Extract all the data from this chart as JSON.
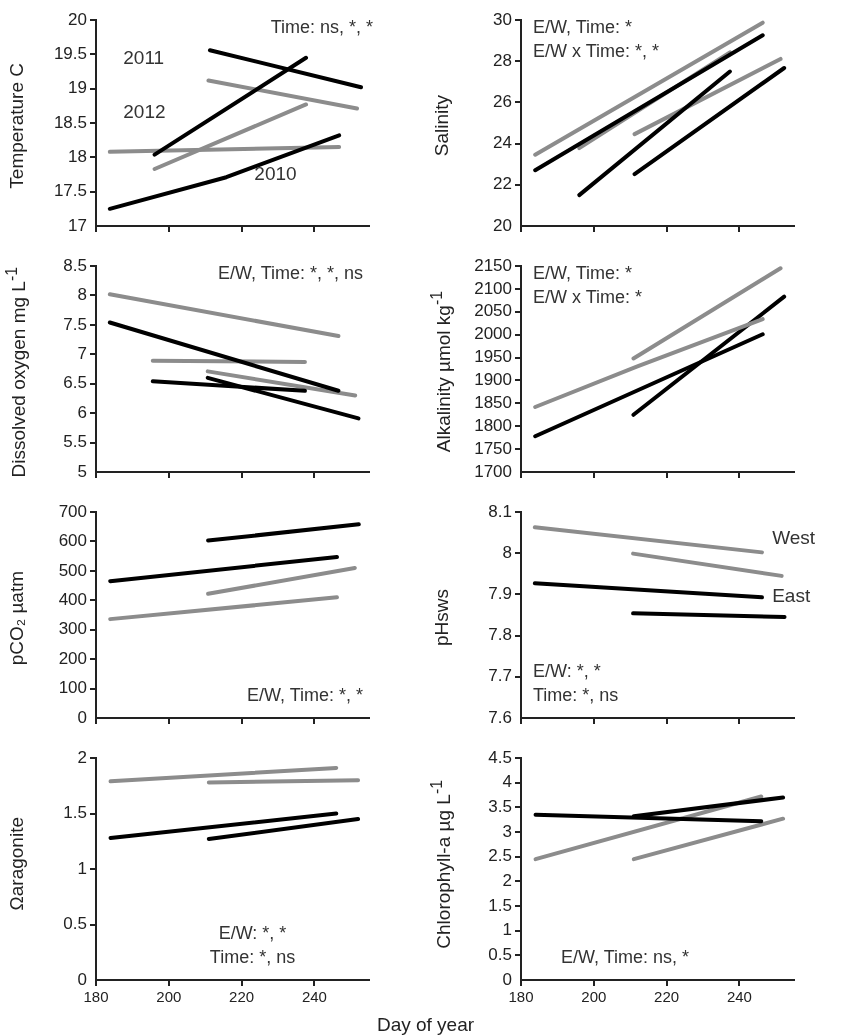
{
  "chart_data": [
    {
      "type": "line",
      "ylabel": "Temperature C",
      "xlim": [
        180,
        255
      ],
      "xticks": [
        180,
        200,
        220,
        240
      ],
      "ylim": [
        17,
        20
      ],
      "yticks": [
        17,
        17.5,
        18,
        18.5,
        19,
        19.5,
        20
      ],
      "tick_labels": "y",
      "grid": false,
      "legend": false,
      "marker": "none",
      "annotations": [
        "Time: ns, *, *",
        "2011",
        "2012",
        "2010"
      ],
      "series": [
        {
          "color": "#000000",
          "x": [
            211.3,
            252.8
          ],
          "values": [
            19.56,
            19.02
          ]
        },
        {
          "color": "#000000",
          "x": [
            196.1,
            237.7
          ],
          "values": [
            18.04,
            19.45
          ]
        },
        {
          "color": "#000000",
          "x": [
            183.8,
            215.8,
            246.8
          ],
          "values": [
            17.25,
            17.71,
            18.32
          ]
        },
        {
          "color": "#8c8c8c",
          "x": [
            210.9,
            251.7
          ],
          "values": [
            19.12,
            18.71
          ]
        },
        {
          "color": "#8c8c8c",
          "x": [
            196.1,
            237.7
          ],
          "values": [
            17.83,
            18.77
          ]
        },
        {
          "color": "#8c8c8c",
          "x": [
            183.8,
            246.8
          ],
          "values": [
            18.08,
            18.15
          ]
        }
      ]
    },
    {
      "type": "line",
      "ylabel": "Salinity",
      "xlim": [
        180,
        255
      ],
      "xticks": [
        180,
        200,
        220,
        240
      ],
      "ylim": [
        20,
        30
      ],
      "yticks": [
        20,
        22,
        24,
        26,
        28,
        30
      ],
      "tick_labels": "y",
      "grid": false,
      "legend": false,
      "marker": "none",
      "annotations": [
        "E/W, Time: *",
        "E/W x Time: *, *"
      ],
      "series": [
        {
          "color": "#8c8c8c",
          "x": [
            183.9,
            246.4
          ],
          "values": [
            23.46,
            29.87
          ]
        },
        {
          "color": "#000000",
          "x": [
            183.9,
            246.4
          ],
          "values": [
            22.71,
            29.26
          ]
        },
        {
          "color": "#8c8c8c",
          "x": [
            196,
            237.4
          ],
          "values": [
            23.78,
            28.43
          ]
        },
        {
          "color": "#000000",
          "x": [
            196,
            237.4
          ],
          "values": [
            21.5,
            27.5
          ]
        },
        {
          "color": "#8c8c8c",
          "x": [
            211.2,
            251.3
          ],
          "values": [
            24.46,
            28.11
          ]
        },
        {
          "color": "#000000",
          "x": [
            211.2,
            252.3
          ],
          "values": [
            22.52,
            27.67
          ]
        }
      ]
    },
    {
      "type": "line",
      "ylabel": "Dissolved oxygen mg L$^{-1}$",
      "xlim": [
        180,
        255
      ],
      "xticks": [
        180,
        200,
        220,
        240
      ],
      "ylim": [
        5,
        8.5
      ],
      "yticks": [
        5,
        5.5,
        6,
        6.5,
        7,
        7.5,
        8,
        8.5
      ],
      "tick_labels": "y",
      "grid": false,
      "legend": false,
      "marker": "none",
      "annotations": [
        "E/W, Time: *, *, ns"
      ],
      "series": [
        {
          "color": "#8c8c8c",
          "x": [
            183.8,
            246.6
          ],
          "values": [
            8.02,
            7.31
          ]
        },
        {
          "color": "#000000",
          "x": [
            183.8,
            246.6
          ],
          "values": [
            7.54,
            6.38
          ]
        },
        {
          "color": "#8c8c8c",
          "x": [
            195.6,
            237.4
          ],
          "values": [
            6.89,
            6.87
          ]
        },
        {
          "color": "#000000",
          "x": [
            195.6,
            237.4
          ],
          "values": [
            6.54,
            6.38
          ]
        },
        {
          "color": "#8c8c8c",
          "x": [
            210.7,
            251.2
          ],
          "values": [
            6.71,
            6.3
          ]
        },
        {
          "color": "#000000",
          "x": [
            210.7,
            252.1
          ],
          "values": [
            6.6,
            5.91
          ]
        }
      ]
    },
    {
      "type": "line",
      "ylabel": "Alkalinity µmol kg$^{-1}$",
      "xlim": [
        180,
        255
      ],
      "xticks": [
        180,
        200,
        220,
        240
      ],
      "ylim": [
        1700,
        2150
      ],
      "yticks": [
        1700,
        1750,
        1800,
        1850,
        1900,
        1950,
        2000,
        2050,
        2100,
        2150
      ],
      "tick_labels": "y",
      "grid": false,
      "legend": false,
      "marker": "none",
      "annotations": [
        "E/W, Time: *",
        "E/W x Time: *"
      ],
      "series": [
        {
          "color": "#8c8c8c",
          "x": [
            183.9,
            211.8,
            246.4
          ],
          "values": [
            1842,
            1930,
            2034
          ]
        },
        {
          "color": "#000000",
          "x": [
            183.9,
            246.4
          ],
          "values": [
            1778,
            2001
          ]
        },
        {
          "color": "#8c8c8c",
          "x": [
            210.9,
            251.3
          ],
          "values": [
            1948,
            2145
          ]
        },
        {
          "color": "#000000",
          "x": [
            210.9,
            252.3
          ],
          "values": [
            1825,
            2083
          ]
        }
      ]
    },
    {
      "type": "line",
      "ylabel": "pCO₂ µatm",
      "xlim": [
        180,
        255
      ],
      "xticks": [
        180,
        200,
        220,
        240
      ],
      "ylim": [
        0,
        700
      ],
      "yticks": [
        0,
        100,
        200,
        300,
        400,
        500,
        600,
        700
      ],
      "tick_labels": "y",
      "grid": false,
      "legend": false,
      "marker": "none",
      "annotations": [
        "E/W, Time: *, *"
      ],
      "series": [
        {
          "color": "#000000",
          "x": [
            210.8,
            252.2
          ],
          "values": [
            603,
            658
          ]
        },
        {
          "color": "#000000",
          "x": [
            183.9,
            246.2
          ],
          "values": [
            465,
            547
          ]
        },
        {
          "color": "#8c8c8c",
          "x": [
            210.8,
            251.1
          ],
          "values": [
            422,
            510
          ]
        },
        {
          "color": "#8c8c8c",
          "x": [
            183.9,
            246.2
          ],
          "values": [
            336,
            410
          ]
        }
      ]
    },
    {
      "type": "line",
      "ylabel": "pHsws",
      "xlim": [
        180,
        255
      ],
      "xticks": [
        180,
        200,
        220,
        240
      ],
      "ylim": [
        7.6,
        8.1
      ],
      "yticks": [
        7.6,
        7.7,
        7.8,
        7.9,
        8,
        8.1
      ],
      "tick_labels": "y",
      "grid": false,
      "legend": false,
      "marker": "none",
      "annotations": [
        "E/W: *, *",
        "Time: *, ns",
        "West",
        "East"
      ],
      "series": [
        {
          "color": "#8c8c8c",
          "x": [
            183.8,
            246.2
          ],
          "values": [
            8.063,
            8.002
          ]
        },
        {
          "color": "#8c8c8c",
          "x": [
            210.8,
            251.6
          ],
          "values": [
            7.999,
            7.945
          ]
        },
        {
          "color": "#000000",
          "x": [
            183.8,
            246.2
          ],
          "values": [
            7.927,
            7.893
          ]
        },
        {
          "color": "#000000",
          "x": [
            210.8,
            252.4
          ],
          "values": [
            7.854,
            7.845
          ]
        }
      ]
    },
    {
      "type": "line",
      "ylabel": "Ωaragonite",
      "xlim": [
        180,
        255
      ],
      "xticks": [
        180,
        200,
        220,
        240
      ],
      "ylim": [
        0,
        2
      ],
      "yticks": [
        0,
        0.5,
        1,
        1.5,
        2
      ],
      "grid": false,
      "legend": false,
      "marker": "none",
      "annotations": [
        "E/W: *, *",
        "Time: *, ns"
      ],
      "series": [
        {
          "color": "#8c8c8c",
          "x": [
            184,
            246
          ],
          "values": [
            1.79,
            1.91
          ]
        },
        {
          "color": "#8c8c8c",
          "x": [
            211,
            252
          ],
          "values": [
            1.78,
            1.8
          ]
        },
        {
          "color": "#000000",
          "x": [
            184,
            246
          ],
          "values": [
            1.28,
            1.5
          ]
        },
        {
          "color": "#000000",
          "x": [
            211,
            252
          ],
          "values": [
            1.27,
            1.45
          ]
        }
      ]
    },
    {
      "type": "line",
      "ylabel": "Chlorophyll-a µg L$^{-1}$",
      "xlabel": "Day of year",
      "xlim": [
        180,
        255
      ],
      "xticks": [
        180,
        200,
        220,
        240
      ],
      "ylim": [
        0,
        4.5
      ],
      "yticks": [
        0,
        0.5,
        1,
        1.5,
        2,
        2.5,
        3,
        3.5,
        4,
        4.5
      ],
      "grid": false,
      "legend": false,
      "marker": "none",
      "annotations": [
        "E/W, Time: ns, *"
      ],
      "series": [
        {
          "color": "#000000",
          "x": [
            184,
            246
          ],
          "values": [
            3.35,
            3.22
          ]
        },
        {
          "color": "#000000",
          "x": [
            211,
            252
          ],
          "values": [
            3.32,
            3.7
          ]
        },
        {
          "color": "#8c8c8c",
          "x": [
            184,
            246
          ],
          "values": [
            2.45,
            3.72
          ]
        },
        {
          "color": "#8c8c8c",
          "x": [
            211,
            252
          ],
          "values": [
            2.45,
            3.27
          ]
        }
      ]
    }
  ]
}
